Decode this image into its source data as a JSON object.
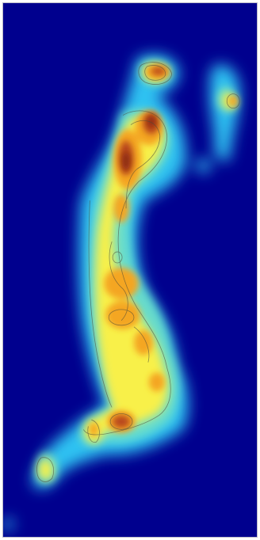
{
  "image": {
    "kind": "heatmap",
    "colormap": [
      "#00008e",
      "#2fc2f2",
      "#f8f04a",
      "#f4a623",
      "#c0521a",
      "#8a2a0a"
    ],
    "contour_lines": true,
    "background_color": "#00008e",
    "frame_color": "#b8b8c8"
  }
}
